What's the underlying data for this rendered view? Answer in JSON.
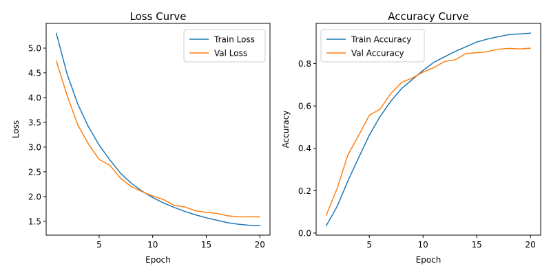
{
  "colors": {
    "train": "#1f77b4",
    "val": "#ff7f0e",
    "axis": "#000000",
    "legend_border": "#cccccc"
  },
  "chart_data": [
    {
      "type": "line",
      "title": "Loss Curve",
      "xlabel": "Epoch",
      "ylabel": "Loss",
      "xlim": [
        0.05,
        20.95
      ],
      "ylim": [
        1.22,
        5.5
      ],
      "xticks": [
        5,
        10,
        15,
        20
      ],
      "yticks": [
        1.5,
        2.0,
        2.5,
        3.0,
        3.5,
        4.0,
        4.5,
        5.0
      ],
      "ytick_labels": [
        "1.5",
        "2.0",
        "2.5",
        "3.0",
        "3.5",
        "4.0",
        "4.5",
        "5.0"
      ],
      "legend_position": "top-right",
      "grid": false,
      "x": [
        1,
        2,
        3,
        4,
        5,
        6,
        7,
        8,
        9,
        10,
        11,
        12,
        13,
        14,
        15,
        16,
        17,
        18,
        19,
        20
      ],
      "series": [
        {
          "name": "Train Loss",
          "color_key": "train",
          "values": [
            5.3,
            4.48,
            3.87,
            3.41,
            3.04,
            2.74,
            2.47,
            2.27,
            2.11,
            1.98,
            1.87,
            1.78,
            1.7,
            1.63,
            1.57,
            1.52,
            1.47,
            1.44,
            1.42,
            1.41
          ]
        },
        {
          "name": "Val Loss",
          "color_key": "val",
          "values": [
            4.74,
            4.05,
            3.45,
            3.06,
            2.75,
            2.63,
            2.37,
            2.2,
            2.1,
            2.01,
            1.94,
            1.82,
            1.79,
            1.71,
            1.68,
            1.66,
            1.61,
            1.59,
            1.59,
            1.59
          ]
        }
      ]
    },
    {
      "type": "line",
      "title": "Accuracy Curve",
      "xlabel": "Epoch",
      "ylabel": "Accuracy",
      "xlim": [
        0.05,
        20.95
      ],
      "ylim": [
        -0.01,
        0.99
      ],
      "xticks": [
        5,
        10,
        15,
        20
      ],
      "yticks": [
        0.0,
        0.2,
        0.4,
        0.6,
        0.8
      ],
      "ytick_labels": [
        "0.0",
        "0.2",
        "0.4",
        "0.6",
        "0.8"
      ],
      "legend_position": "top-left",
      "grid": false,
      "x": [
        1,
        2,
        3,
        4,
        5,
        6,
        7,
        8,
        9,
        10,
        11,
        12,
        13,
        14,
        15,
        16,
        17,
        18,
        19,
        20
      ],
      "series": [
        {
          "name": "Train Accuracy",
          "color_key": "train",
          "values": [
            0.035,
            0.125,
            0.245,
            0.355,
            0.462,
            0.55,
            0.622,
            0.682,
            0.725,
            0.768,
            0.806,
            0.832,
            0.858,
            0.88,
            0.902,
            0.916,
            0.927,
            0.937,
            0.94,
            0.944
          ]
        },
        {
          "name": "Val Accuracy",
          "color_key": "val",
          "values": [
            0.085,
            0.21,
            0.368,
            0.46,
            0.556,
            0.585,
            0.658,
            0.711,
            0.732,
            0.76,
            0.781,
            0.81,
            0.818,
            0.848,
            0.851,
            0.856,
            0.868,
            0.872,
            0.869,
            0.873
          ]
        }
      ]
    }
  ]
}
